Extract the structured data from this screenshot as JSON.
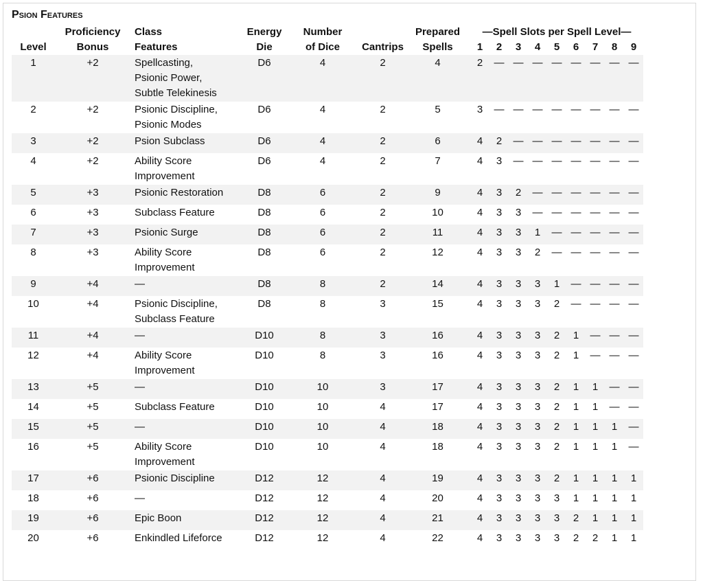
{
  "title": "Psion Features",
  "headers": {
    "level": "Level",
    "proficiency_1": "Proficiency",
    "proficiency_2": "Bonus",
    "features_1": "Class",
    "features_2": "Features",
    "energy_1": "Energy",
    "energy_2": "Die",
    "dice_1": "Number",
    "dice_2": "of Dice",
    "cantrips": "Cantrips",
    "prepared_1": "Prepared",
    "prepared_2": "Spells",
    "slots": "—Spell Slots per Spell Level—",
    "slot_levels": [
      "1",
      "2",
      "3",
      "4",
      "5",
      "6",
      "7",
      "8",
      "9"
    ]
  },
  "rows": [
    {
      "level": "1",
      "prof": "+2",
      "features": [
        "Spellcasting,",
        "Psionic Power,",
        "Subtle Telekinesis"
      ],
      "die": "D6",
      "dice": "4",
      "cantrips": "2",
      "prepared": "4",
      "slots": [
        "2",
        "—",
        "—",
        "—",
        "—",
        "—",
        "—",
        "—",
        "—"
      ]
    },
    {
      "level": "2",
      "prof": "+2",
      "features": [
        "Psionic Discipline,",
        "Psionic Modes"
      ],
      "die": "D6",
      "dice": "4",
      "cantrips": "2",
      "prepared": "5",
      "slots": [
        "3",
        "—",
        "—",
        "—",
        "—",
        "—",
        "—",
        "—",
        "—"
      ]
    },
    {
      "level": "3",
      "prof": "+2",
      "features": [
        "Psion Subclass"
      ],
      "die": "D6",
      "dice": "4",
      "cantrips": "2",
      "prepared": "6",
      "slots": [
        "4",
        "2",
        "—",
        "—",
        "—",
        "—",
        "—",
        "—",
        "—"
      ]
    },
    {
      "level": "4",
      "prof": "+2",
      "features": [
        "Ability Score",
        "Improvement"
      ],
      "die": "D6",
      "dice": "4",
      "cantrips": "2",
      "prepared": "7",
      "slots": [
        "4",
        "3",
        "—",
        "—",
        "—",
        "—",
        "—",
        "—",
        "—"
      ]
    },
    {
      "level": "5",
      "prof": "+3",
      "features": [
        "Psionic Restoration"
      ],
      "die": "D8",
      "dice": "6",
      "cantrips": "2",
      "prepared": "9",
      "slots": [
        "4",
        "3",
        "2",
        "—",
        "—",
        "—",
        "—",
        "—",
        "—"
      ]
    },
    {
      "level": "6",
      "prof": "+3",
      "features": [
        "Subclass Feature"
      ],
      "die": "D8",
      "dice": "6",
      "cantrips": "2",
      "prepared": "10",
      "slots": [
        "4",
        "3",
        "3",
        "—",
        "—",
        "—",
        "—",
        "—",
        "—"
      ]
    },
    {
      "level": "7",
      "prof": "+3",
      "features": [
        "Psionic Surge"
      ],
      "die": "D8",
      "dice": "6",
      "cantrips": "2",
      "prepared": "11",
      "slots": [
        "4",
        "3",
        "3",
        "1",
        "—",
        "—",
        "—",
        "—",
        "—"
      ]
    },
    {
      "level": "8",
      "prof": "+3",
      "features": [
        "Ability Score",
        "Improvement"
      ],
      "die": "D8",
      "dice": "6",
      "cantrips": "2",
      "prepared": "12",
      "slots": [
        "4",
        "3",
        "3",
        "2",
        "—",
        "—",
        "—",
        "—",
        "—"
      ]
    },
    {
      "level": "9",
      "prof": "+4",
      "features": [
        "—"
      ],
      "die": "D8",
      "dice": "8",
      "cantrips": "2",
      "prepared": "14",
      "slots": [
        "4",
        "3",
        "3",
        "3",
        "1",
        "—",
        "—",
        "—",
        "—"
      ]
    },
    {
      "level": "10",
      "prof": "+4",
      "features": [
        "Psionic Discipline,",
        "Subclass Feature"
      ],
      "die": "D8",
      "dice": "8",
      "cantrips": "3",
      "prepared": "15",
      "slots": [
        "4",
        "3",
        "3",
        "3",
        "2",
        "—",
        "—",
        "—",
        "—"
      ]
    },
    {
      "level": "11",
      "prof": "+4",
      "features": [
        "—"
      ],
      "die": "D10",
      "dice": "8",
      "cantrips": "3",
      "prepared": "16",
      "slots": [
        "4",
        "3",
        "3",
        "3",
        "2",
        "1",
        "—",
        "—",
        "—"
      ]
    },
    {
      "level": "12",
      "prof": "+4",
      "features": [
        "Ability Score",
        "Improvement"
      ],
      "die": "D10",
      "dice": "8",
      "cantrips": "3",
      "prepared": "16",
      "slots": [
        "4",
        "3",
        "3",
        "3",
        "2",
        "1",
        "—",
        "—",
        "—"
      ]
    },
    {
      "level": "13",
      "prof": "+5",
      "features": [
        "—"
      ],
      "die": "D10",
      "dice": "10",
      "cantrips": "3",
      "prepared": "17",
      "slots": [
        "4",
        "3",
        "3",
        "3",
        "2",
        "1",
        "1",
        "—",
        "—"
      ]
    },
    {
      "level": "14",
      "prof": "+5",
      "features": [
        "Subclass Feature"
      ],
      "die": "D10",
      "dice": "10",
      "cantrips": "4",
      "prepared": "17",
      "slots": [
        "4",
        "3",
        "3",
        "3",
        "2",
        "1",
        "1",
        "—",
        "—"
      ]
    },
    {
      "level": "15",
      "prof": "+5",
      "features": [
        "—"
      ],
      "die": "D10",
      "dice": "10",
      "cantrips": "4",
      "prepared": "18",
      "slots": [
        "4",
        "3",
        "3",
        "3",
        "2",
        "1",
        "1",
        "1",
        "—"
      ]
    },
    {
      "level": "16",
      "prof": "+5",
      "features": [
        "Ability Score",
        "Improvement"
      ],
      "die": "D10",
      "dice": "10",
      "cantrips": "4",
      "prepared": "18",
      "slots": [
        "4",
        "3",
        "3",
        "3",
        "2",
        "1",
        "1",
        "1",
        "—"
      ]
    },
    {
      "level": "17",
      "prof": "+6",
      "features": [
        "Psionic Discipline"
      ],
      "die": "D12",
      "dice": "12",
      "cantrips": "4",
      "prepared": "19",
      "slots": [
        "4",
        "3",
        "3",
        "3",
        "2",
        "1",
        "1",
        "1",
        "1"
      ]
    },
    {
      "level": "18",
      "prof": "+6",
      "features": [
        "—"
      ],
      "die": "D12",
      "dice": "12",
      "cantrips": "4",
      "prepared": "20",
      "slots": [
        "4",
        "3",
        "3",
        "3",
        "3",
        "1",
        "1",
        "1",
        "1"
      ]
    },
    {
      "level": "19",
      "prof": "+6",
      "features": [
        "Epic Boon"
      ],
      "die": "D12",
      "dice": "12",
      "cantrips": "4",
      "prepared": "21",
      "slots": [
        "4",
        "3",
        "3",
        "3",
        "3",
        "2",
        "1",
        "1",
        "1"
      ]
    },
    {
      "level": "20",
      "prof": "+6",
      "features": [
        "Enkindled Lifeforce"
      ],
      "die": "D12",
      "dice": "12",
      "cantrips": "4",
      "prepared": "22",
      "slots": [
        "4",
        "3",
        "3",
        "3",
        "3",
        "2",
        "2",
        "1",
        "1"
      ]
    }
  ]
}
